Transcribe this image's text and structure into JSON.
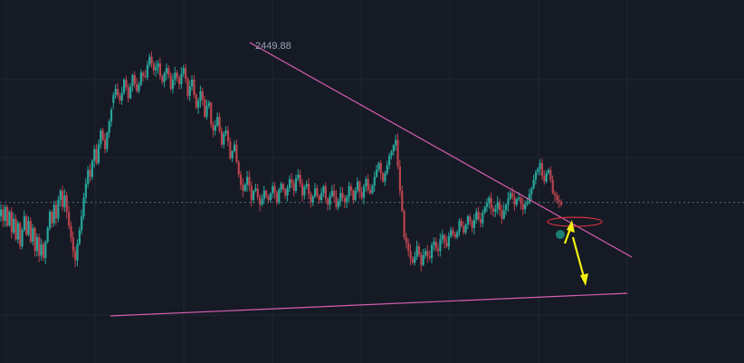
{
  "chart_data": {
    "type": "candlestick",
    "title": "",
    "xlabel": "",
    "ylabel": "",
    "grid": true,
    "ylim": [
      2338,
      2456
    ],
    "current_price": 2387,
    "annotations": {
      "peak_label": "2449.88"
    },
    "levels": [
      [
        2430,
        2436
      ],
      [
        2436,
        2431
      ],
      [
        2431,
        2440
      ],
      [
        2440,
        2432
      ],
      [
        2432,
        2442
      ],
      [
        2442,
        2435
      ],
      [
        2435,
        2443
      ],
      [
        2443,
        2441
      ],
      [
        2441,
        2449.88
      ],
      [
        2449.88,
        2444
      ],
      [
        2444,
        2447
      ],
      [
        2447,
        2439
      ],
      [
        2439,
        2445
      ],
      [
        2445,
        2436
      ],
      [
        2436,
        2443
      ],
      [
        2443,
        2438
      ],
      [
        2438,
        2445
      ],
      [
        2445,
        2433
      ],
      [
        2433,
        2440
      ],
      [
        2440,
        2428
      ],
      [
        2428,
        2435
      ],
      [
        2435,
        2424
      ],
      [
        2424,
        2430
      ],
      [
        2430,
        2418
      ],
      [
        2418,
        2424
      ],
      [
        2424,
        2412
      ],
      [
        2412,
        2418
      ],
      [
        2418,
        2406
      ],
      [
        2406,
        2412
      ],
      [
        2412,
        2399
      ],
      [
        2399,
        2392
      ],
      [
        2392,
        2398
      ],
      [
        2398,
        2388
      ],
      [
        2388,
        2393
      ],
      [
        2393,
        2386
      ],
      [
        2386,
        2392
      ],
      [
        2392,
        2388
      ],
      [
        2388,
        2394
      ],
      [
        2394,
        2387
      ],
      [
        2387,
        2395
      ],
      [
        2395,
        2390
      ],
      [
        2390,
        2397
      ],
      [
        2397,
        2392
      ],
      [
        2392,
        2399
      ],
      [
        2399,
        2390
      ],
      [
        2390,
        2395
      ],
      [
        2395,
        2387
      ],
      [
        2387,
        2393
      ],
      [
        2393,
        2388
      ],
      [
        2388,
        2394
      ],
      [
        2394,
        2386
      ],
      [
        2386,
        2392
      ],
      [
        2392,
        2385
      ],
      [
        2385,
        2391
      ],
      [
        2391,
        2387
      ],
      [
        2387,
        2394
      ],
      [
        2394,
        2388
      ],
      [
        2388,
        2396
      ],
      [
        2396,
        2389
      ],
      [
        2389,
        2397
      ],
      [
        2397,
        2391
      ],
      [
        2391,
        2398
      ],
      [
        2398,
        2404
      ],
      [
        2404,
        2396
      ],
      [
        2396,
        2403
      ],
      [
        2403,
        2409
      ],
      [
        2409,
        2414
      ],
      [
        2414,
        2392
      ],
      [
        2392,
        2372
      ],
      [
        2372,
        2366
      ],
      [
        2366,
        2361
      ],
      [
        2361,
        2368
      ],
      [
        2368,
        2360
      ],
      [
        2360,
        2366
      ],
      [
        2366,
        2363
      ],
      [
        2363,
        2370
      ],
      [
        2370,
        2366
      ],
      [
        2366,
        2373
      ],
      [
        2373,
        2368
      ],
      [
        2368,
        2375
      ],
      [
        2375,
        2372
      ],
      [
        2372,
        2379
      ],
      [
        2379,
        2374
      ],
      [
        2374,
        2381
      ],
      [
        2381,
        2376
      ],
      [
        2376,
        2383
      ],
      [
        2383,
        2378
      ],
      [
        2378,
        2385
      ],
      [
        2385,
        2389
      ],
      [
        2389,
        2383
      ],
      [
        2383,
        2387
      ],
      [
        2387,
        2380
      ],
      [
        2380,
        2386
      ],
      [
        2386,
        2391
      ],
      [
        2391,
        2386
      ],
      [
        2386,
        2389
      ],
      [
        2389,
        2384
      ],
      [
        2384,
        2387
      ],
      [
        2387,
        2393
      ],
      [
        2393,
        2400
      ],
      [
        2400,
        2404
      ],
      [
        2404,
        2396
      ],
      [
        2396,
        2401
      ],
      [
        2401,
        2391
      ],
      [
        2391,
        2388
      ],
      [
        2388,
        2386
      ]
    ]
  }
}
